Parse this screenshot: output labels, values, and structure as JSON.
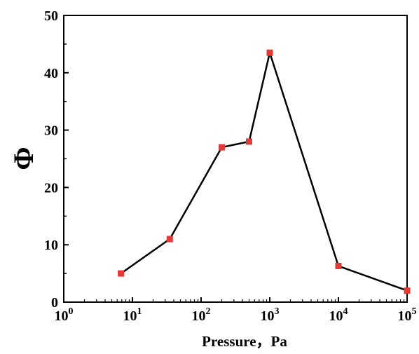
{
  "chart_data": {
    "type": "line",
    "xscale": "log",
    "xlim": [
      1,
      100000
    ],
    "ylim": [
      0,
      50
    ],
    "xlabel": "Pressure，Pa",
    "ylabel": "Φ",
    "grid": false,
    "x_ticks": [
      {
        "value": 1,
        "base": "10",
        "exp": "0"
      },
      {
        "value": 10,
        "base": "10",
        "exp": "1"
      },
      {
        "value": 100,
        "base": "10",
        "exp": "2"
      },
      {
        "value": 1000,
        "base": "10",
        "exp": "3"
      },
      {
        "value": 10000,
        "base": "10",
        "exp": "4"
      },
      {
        "value": 100000,
        "base": "10",
        "exp": "5"
      }
    ],
    "y_ticks": [
      0,
      10,
      20,
      30,
      40,
      50
    ],
    "series": [
      {
        "line_color": "#000000",
        "marker_color": "#e53935",
        "marker": "square",
        "x": [
          6.8,
          35,
          200,
          500,
          1000,
          10000,
          100000
        ],
        "y": [
          5.0,
          11.0,
          27.0,
          28.0,
          43.5,
          6.3,
          2.0
        ]
      }
    ]
  }
}
